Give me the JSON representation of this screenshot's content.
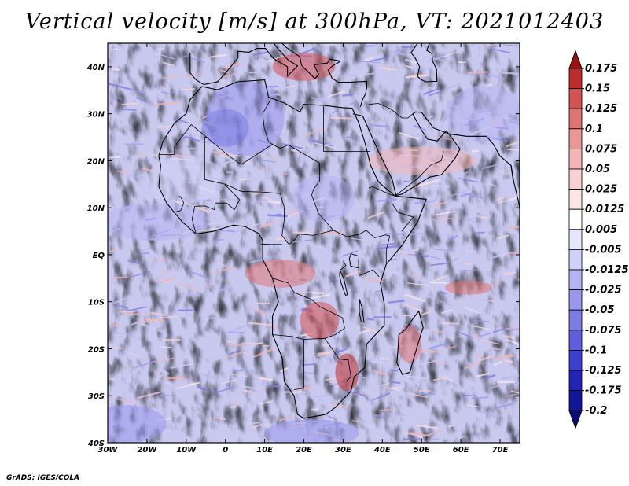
{
  "chart_data": {
    "type": "heatmap",
    "title": "Vertical velocity [m/s] at 300hPa, VT: 2021012403",
    "variable": "Vertical velocity",
    "units": "m/s",
    "level": "300hPa",
    "valid_time": "2021012403",
    "x_axis": {
      "range": [
        -30,
        75
      ],
      "ticks": [
        -30,
        -20,
        -10,
        0,
        10,
        20,
        30,
        40,
        50,
        60,
        70
      ],
      "tick_labels": [
        "30W",
        "20W",
        "10W",
        "0",
        "10E",
        "20E",
        "30E",
        "40E",
        "50E",
        "60E",
        "70E"
      ]
    },
    "y_axis": {
      "range": [
        -40,
        45
      ],
      "ticks": [
        40,
        30,
        20,
        10,
        0,
        -10,
        -20,
        -30,
        -40
      ],
      "tick_labels": [
        "40N",
        "30N",
        "20N",
        "10N",
        "EQ",
        "10S",
        "20S",
        "30S",
        "40S"
      ]
    },
    "colorbar": {
      "levels": [
        0.175,
        0.15,
        0.125,
        0.1,
        0.075,
        0.05,
        0.025,
        0.0125,
        0.005,
        -0.005,
        -0.0125,
        -0.025,
        -0.05,
        -0.075,
        -0.1,
        -0.125,
        -0.175,
        -0.2
      ],
      "labels": [
        "0.175",
        "0.15",
        "0.125",
        "0.1",
        "0.075",
        "0.05",
        "0.025",
        "0.0125",
        "0.005",
        "-0.005",
        "-0.0125",
        "-0.025",
        "-0.05",
        "-0.075",
        "-0.1",
        "-0.125",
        "-0.175",
        "-0.2"
      ],
      "colors": [
        "#a01010",
        "#be2d2d",
        "#d35252",
        "#e07474",
        "#ea9797",
        "#f2b6b6",
        "#f8d2d2",
        "#fce6e6",
        "#ffffff",
        "#e6e6fc",
        "#d0d0f8",
        "#b4b4f2",
        "#9898ec",
        "#7c7ce4",
        "#5e5edc",
        "#3e3ed0",
        "#2323b8",
        "#14149a",
        "#0a0a7a"
      ]
    }
  },
  "credit": "GrADS: IGES/COLA"
}
